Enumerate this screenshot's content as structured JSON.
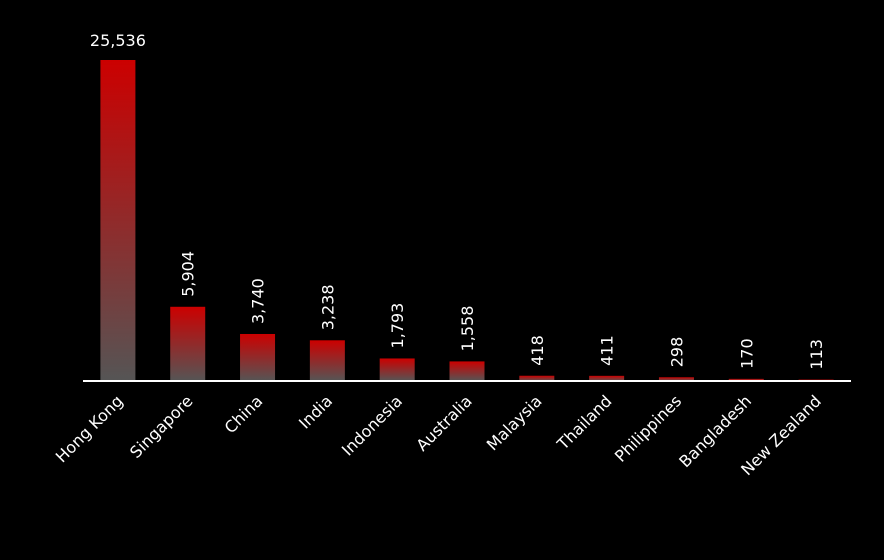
{
  "chart_data": {
    "type": "bar",
    "categories": [
      "Hong Kong",
      "Singapore",
      "China",
      "India",
      "Indonesia",
      "Australia",
      "Malaysia",
      "Thailand",
      "Philippines",
      "Bangladesh",
      "New Zealand"
    ],
    "values": [
      25536,
      5904,
      3740,
      3238,
      1793,
      1558,
      418,
      411,
      298,
      170,
      113
    ],
    "value_labels": [
      "25,536",
      "5,904",
      "3,740",
      "3,238",
      "1,793",
      "1,558",
      "418",
      "411",
      "298",
      "170",
      "113"
    ],
    "color": "#cc0000"
  }
}
